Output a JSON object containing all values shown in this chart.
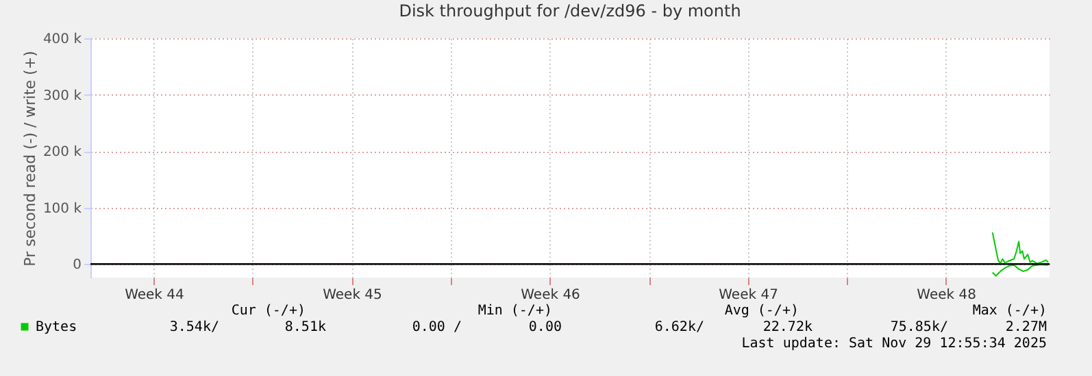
{
  "chart_data": {
    "type": "line",
    "title": "Disk throughput for /dev/zd96 - by month",
    "ylabel": "Pr second read (-) / write (+)",
    "xlim": [
      "2025-10-28T06:15",
      "2025-12-01T04:00"
    ],
    "ylim": [
      -24000,
      400000
    ],
    "xticks": [
      {
        "value": "2025-10-30T12:00",
        "label": "Week 44"
      },
      {
        "value": "2025-11-03T00:00",
        "label": null
      },
      {
        "value": "2025-11-06T12:00",
        "label": "Week 45"
      },
      {
        "value": "2025-11-10T00:00",
        "label": null
      },
      {
        "value": "2025-11-13T12:00",
        "label": "Week 46"
      },
      {
        "value": "2025-11-17T00:00",
        "label": null
      },
      {
        "value": "2025-11-20T12:00",
        "label": "Week 47"
      },
      {
        "value": "2025-11-24T00:00",
        "label": null
      },
      {
        "value": "2025-11-27T12:00",
        "label": "Week 48"
      }
    ],
    "yticks": [
      0,
      {
        "value": 100000,
        "label": "100 k"
      },
      {
        "value": 200000,
        "label": "200 k"
      },
      {
        "value": 300000,
        "label": "300 k"
      },
      {
        "value": 400000,
        "label": "400 k"
      }
    ],
    "grid": true,
    "legend": "bottom left",
    "ref_lines": [
      {
        "axis": "y",
        "value": 0,
        "color": "#000000"
      }
    ],
    "series": [
      {
        "name": "Bytes",
        "color": "#00cc00",
        "x": [
          "2025-11-29T03:36",
          "2025-11-29T08:24",
          "2025-11-29T10:19",
          "2025-11-29T12:14",
          "2025-11-29T14:10",
          "2025-11-29T18:00",
          "2025-11-29T21:50",
          "2025-11-30T00:00",
          "2025-11-30T01:55",
          "2025-11-30T03:07",
          "2025-11-30T05:02",
          "2025-11-30T06:29",
          "2025-11-30T09:36",
          "2025-11-30T11:31",
          "2025-11-30T13:26",
          "2025-11-30T17:17",
          "2025-11-30T21:07",
          "2025-12-01T00:58",
          "2025-12-01T02:53"
        ],
        "values": [
          56000,
          7000,
          1000,
          9000,
          2000,
          6000,
          9000,
          23000,
          40000,
          19000,
          23000,
          9000,
          17000,
          3000,
          6000,
          1000,
          3000,
          7000,
          3000
        ]
      },
      {
        "color": "#00cc00",
        "x": [
          "2025-11-29T03:36",
          "2025-11-29T06:29",
          "2025-11-29T10:19",
          "2025-11-29T14:10",
          "2025-11-29T18:00",
          "2025-11-29T21:50",
          "2025-11-30T01:55",
          "2025-11-30T05:46",
          "2025-11-30T09:36",
          "2025-11-30T13:26",
          "2025-11-30T17:17",
          "2025-11-30T21:07",
          "2025-12-01T02:53"
        ],
        "values": [
          -15000,
          -21000,
          -13000,
          -7000,
          -3000,
          -2000,
          -9000,
          -13000,
          -10000,
          -3000,
          -2000,
          -1000,
          -2000
        ]
      }
    ],
    "annotations": [
      "Cur (-/+)",
      "Min (-/+)",
      "Avg (-/+)",
      "Max (-/+)",
      "3.54k/",
      "8.51k",
      "0.00 /",
      "0.00",
      "6.62k/",
      "22.72k",
      "75.85k/",
      "2.27M",
      "Last update: Sat Nov 29 12:55:34 2025"
    ]
  }
}
